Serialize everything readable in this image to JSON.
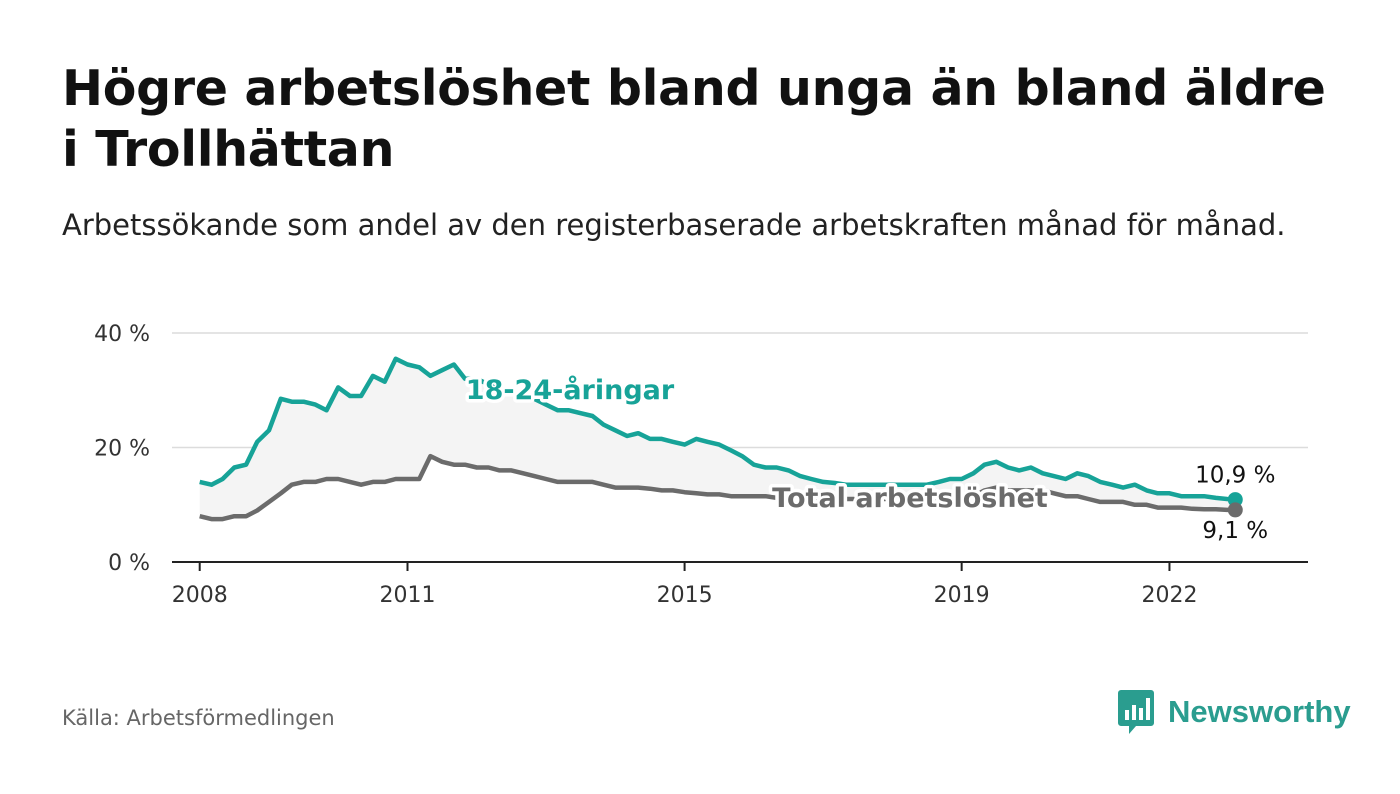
{
  "title": "Högre arbetslöshet bland unga än bland äldre i Trollhättan",
  "subtitle": "Arbetssökande som andel av den registerbaserade arbetskraften månad för månad.",
  "source": "Källa: Arbetsförmedlingen",
  "brand": {
    "name": "Newsworthy",
    "icon": "bar-chart-icon"
  },
  "colors": {
    "young": "#17a398",
    "total": "#6b6b6b",
    "band": "#f4f4f4",
    "grid": "#dcdcdc"
  },
  "chart_data": {
    "type": "line",
    "title": "Högre arbetslöshet bland unga än bland äldre i Trollhättan",
    "xlabel": "",
    "ylabel": "",
    "ylim": [
      0,
      40
    ],
    "xlim": [
      2007.6,
      2024.0
    ],
    "y_ticks": [
      0,
      20,
      40
    ],
    "y_tick_labels": [
      "0 %",
      "20 %",
      "40 %"
    ],
    "x_ticks": [
      2008,
      2011,
      2015,
      2019,
      2022
    ],
    "x_tick_labels": [
      "2008",
      "2011",
      "2015",
      "2019",
      "2022"
    ],
    "grid": true,
    "series": [
      {
        "name": "18-24-åringar",
        "x": [
          2008.0,
          2008.17,
          2008.33,
          2008.5,
          2008.67,
          2008.83,
          2009.0,
          2009.17,
          2009.33,
          2009.5,
          2009.67,
          2009.83,
          2010.0,
          2010.17,
          2010.33,
          2010.5,
          2010.67,
          2010.83,
          2011.0,
          2011.17,
          2011.33,
          2011.5,
          2011.67,
          2011.83,
          2012.0,
          2012.17,
          2012.33,
          2012.5,
          2012.67,
          2012.83,
          2013.0,
          2013.17,
          2013.33,
          2013.5,
          2013.67,
          2013.83,
          2014.0,
          2014.17,
          2014.33,
          2014.5,
          2014.67,
          2014.83,
          2015.0,
          2015.17,
          2015.33,
          2015.5,
          2015.67,
          2015.83,
          2016.0,
          2016.17,
          2016.33,
          2016.5,
          2016.67,
          2016.83,
          2017.0,
          2017.17,
          2017.33,
          2017.5,
          2017.67,
          2017.83,
          2018.0,
          2018.17,
          2018.33,
          2018.5,
          2018.67,
          2018.83,
          2019.0,
          2019.17,
          2019.33,
          2019.5,
          2019.67,
          2019.83,
          2020.0,
          2020.17,
          2020.33,
          2020.5,
          2020.67,
          2020.83,
          2021.0,
          2021.17,
          2021.33,
          2021.5,
          2021.67,
          2021.83,
          2022.0,
          2022.17,
          2022.33,
          2022.5,
          2022.67,
          2022.83,
          2022.95
        ],
        "values": [
          14.0,
          13.5,
          14.5,
          16.5,
          17.0,
          21.0,
          23.0,
          28.5,
          28.0,
          28.0,
          27.5,
          26.5,
          30.5,
          29.0,
          29.0,
          32.5,
          31.5,
          35.5,
          34.5,
          34.0,
          32.5,
          33.5,
          34.5,
          32.0,
          32.0,
          31.0,
          30.0,
          29.5,
          29.0,
          28.5,
          27.5,
          26.5,
          26.5,
          26.0,
          25.5,
          24.0,
          23.0,
          22.0,
          22.5,
          21.5,
          21.5,
          21.0,
          20.5,
          21.5,
          21.0,
          20.5,
          19.5,
          18.5,
          17.0,
          16.5,
          16.5,
          16.0,
          15.0,
          14.5,
          14.0,
          13.8,
          13.5,
          13.5,
          13.5,
          13.5,
          13.5,
          13.5,
          13.5,
          13.5,
          14.0,
          14.5,
          14.5,
          15.5,
          17.0,
          17.5,
          16.5,
          16.0,
          16.5,
          15.5,
          15.0,
          14.5,
          15.5,
          15.0,
          14.0,
          13.5,
          13.0,
          13.5,
          12.5,
          12.0,
          12.0,
          11.5,
          11.5,
          11.5,
          11.2,
          11.0,
          10.9
        ],
        "end_label": "10,9 %"
      },
      {
        "name": "Total arbetslöshet",
        "x": [
          2008.0,
          2008.17,
          2008.33,
          2008.5,
          2008.67,
          2008.83,
          2009.0,
          2009.17,
          2009.33,
          2009.5,
          2009.67,
          2009.83,
          2010.0,
          2010.17,
          2010.33,
          2010.5,
          2010.67,
          2010.83,
          2011.0,
          2011.17,
          2011.33,
          2011.5,
          2011.67,
          2011.83,
          2012.0,
          2012.17,
          2012.33,
          2012.5,
          2012.67,
          2012.83,
          2013.0,
          2013.17,
          2013.33,
          2013.5,
          2013.67,
          2013.83,
          2014.0,
          2014.17,
          2014.33,
          2014.5,
          2014.67,
          2014.83,
          2015.0,
          2015.17,
          2015.33,
          2015.5,
          2015.67,
          2015.83,
          2016.0,
          2016.17,
          2016.33,
          2016.5,
          2016.67,
          2016.83,
          2017.0,
          2017.17,
          2017.33,
          2017.5,
          2017.67,
          2017.83,
          2018.0,
          2018.17,
          2018.33,
          2018.5,
          2018.67,
          2018.83,
          2019.0,
          2019.17,
          2019.33,
          2019.5,
          2019.67,
          2019.83,
          2020.0,
          2020.17,
          2020.33,
          2020.5,
          2020.67,
          2020.83,
          2021.0,
          2021.17,
          2021.33,
          2021.5,
          2021.67,
          2021.83,
          2022.0,
          2022.17,
          2022.33,
          2022.5,
          2022.67,
          2022.83,
          2022.95
        ],
        "values": [
          8.0,
          7.5,
          7.5,
          8.0,
          8.0,
          9.0,
          10.5,
          12.0,
          13.5,
          14.0,
          14.0,
          14.5,
          14.5,
          14.0,
          13.5,
          14.0,
          14.0,
          14.5,
          14.5,
          14.5,
          18.5,
          17.5,
          17.0,
          17.0,
          16.5,
          16.5,
          16.0,
          16.0,
          15.5,
          15.0,
          14.5,
          14.0,
          14.0,
          14.0,
          14.0,
          13.5,
          13.0,
          13.0,
          13.0,
          12.8,
          12.5,
          12.5,
          12.2,
          12.0,
          11.8,
          11.8,
          11.5,
          11.5,
          11.5,
          11.5,
          11.2,
          11.0,
          11.0,
          11.0,
          11.0,
          11.0,
          11.0,
          11.0,
          11.0,
          11.0,
          11.0,
          11.0,
          11.0,
          11.0,
          11.0,
          11.0,
          11.0,
          11.5,
          12.5,
          13.0,
          12.5,
          12.5,
          12.5,
          12.5,
          12.0,
          11.5,
          11.5,
          11.0,
          10.5,
          10.5,
          10.5,
          10.0,
          10.0,
          9.5,
          9.5,
          9.5,
          9.3,
          9.2,
          9.2,
          9.1,
          9.1
        ],
        "end_label": "9,1 %"
      }
    ]
  }
}
